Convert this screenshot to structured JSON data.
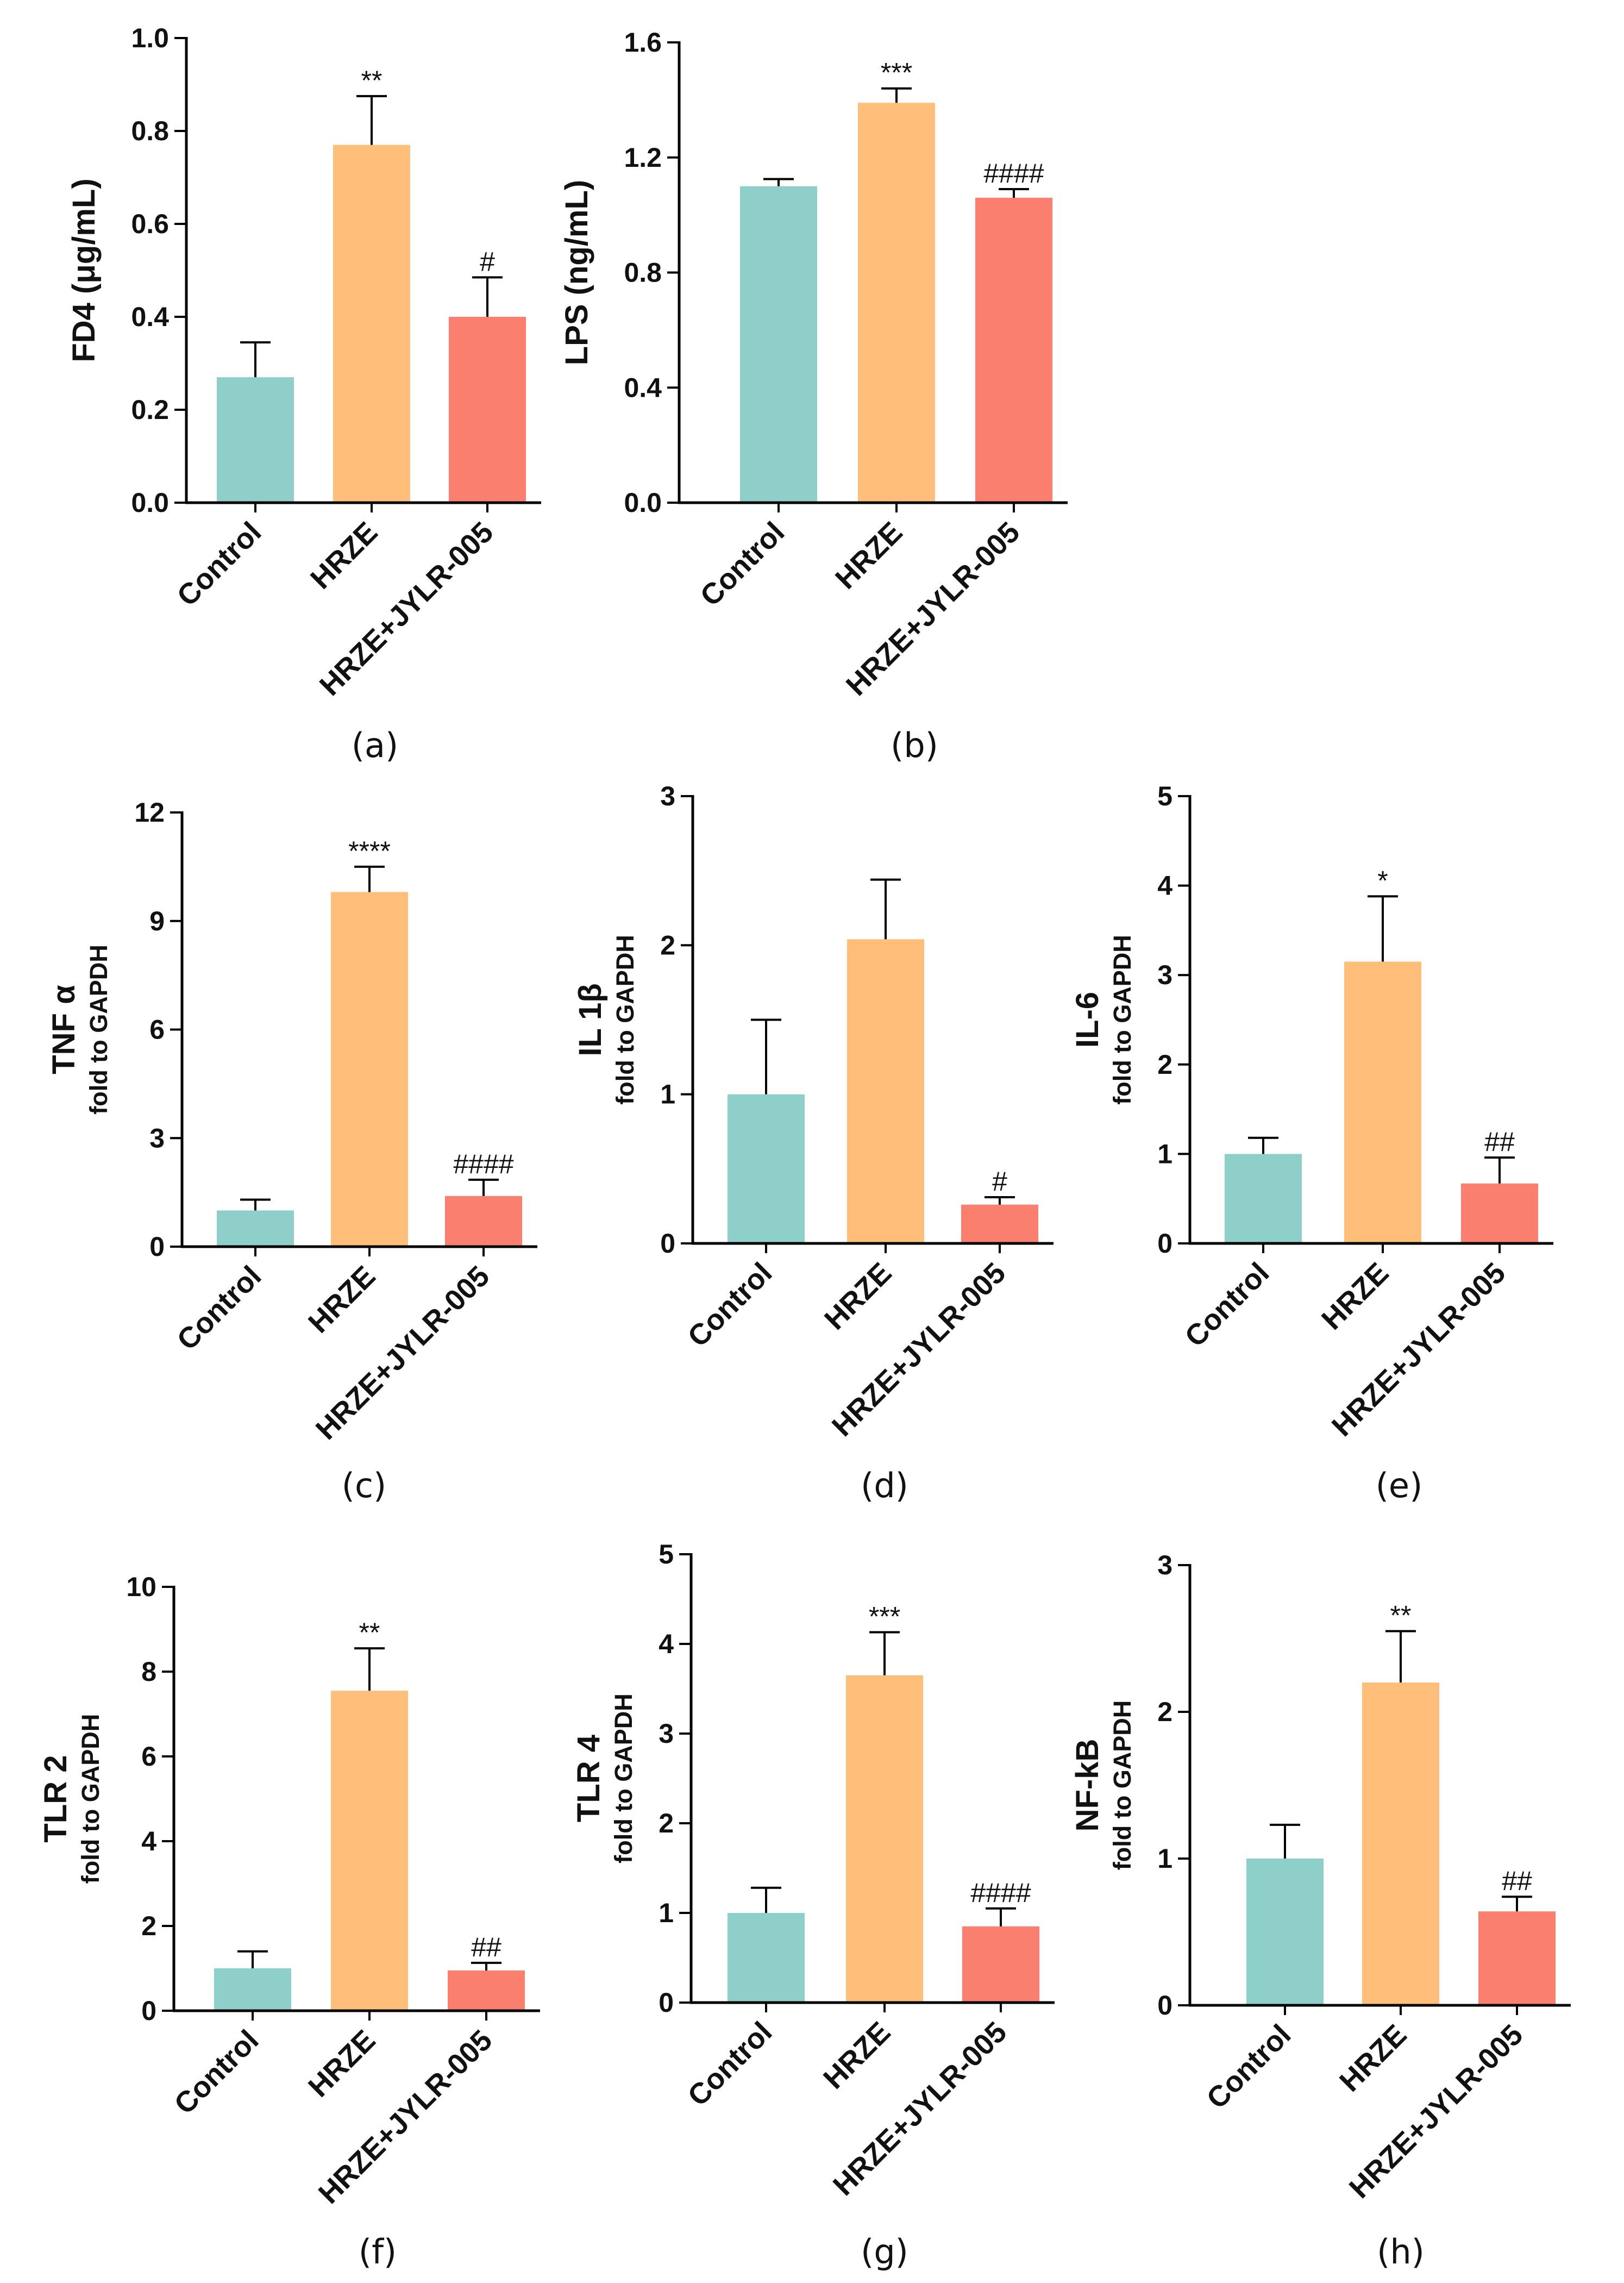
{
  "colors": {
    "Control": "#8ecfc9",
    "HRZE": "#ffbe7a",
    "HRZE+JYLR-005": "#fa7f6f",
    "axis": "#000000"
  },
  "chart_data": [
    {
      "type": "bar",
      "panel": "(a)",
      "ylabel": "FD4 (μg/mL)",
      "ysublabel": "",
      "ylim": [
        0,
        1.0
      ],
      "ticks": [
        "0.0",
        "0.2",
        "0.4",
        "0.6",
        "0.8",
        "1.0"
      ],
      "categories": [
        "Control",
        "HRZE",
        "HRZE+JYLR-005"
      ],
      "values": [
        0.27,
        0.77,
        0.4
      ],
      "errors": [
        0.075,
        0.105,
        0.085
      ],
      "significance": [
        "",
        "**",
        "#"
      ]
    },
    {
      "type": "bar",
      "panel": "(b)",
      "ylabel": "LPS (ng/mL)",
      "ysublabel": "",
      "ylim": [
        0,
        1.6
      ],
      "ticks": [
        "0.0",
        "0.4",
        "0.8",
        "1.2",
        "1.6"
      ],
      "categories": [
        "Control",
        "HRZE",
        "HRZE+JYLR-005"
      ],
      "values": [
        1.1,
        1.39,
        1.06
      ],
      "errors": [
        0.025,
        0.05,
        0.03
      ],
      "significance": [
        "",
        "***",
        "####"
      ]
    },
    {
      "type": "bar",
      "panel": "(c)",
      "ylabel": "TNF α",
      "ysublabel": "fold to GAPDH",
      "ylim": [
        0,
        12
      ],
      "ticks": [
        "0",
        "3",
        "6",
        "9",
        "12"
      ],
      "categories": [
        "Control",
        "HRZE",
        "HRZE+JYLR-005"
      ],
      "values": [
        1.0,
        9.8,
        1.4
      ],
      "errors": [
        0.3,
        0.7,
        0.45
      ],
      "significance": [
        "",
        "****",
        "####"
      ]
    },
    {
      "type": "bar",
      "panel": "(d)",
      "ylabel": "IL 1β",
      "ysublabel": "fold to GAPDH",
      "ylim": [
        0,
        3
      ],
      "ticks": [
        "0",
        "1",
        "2",
        "3"
      ],
      "categories": [
        "Control",
        "HRZE",
        "HRZE+JYLR-005"
      ],
      "values": [
        1.0,
        2.04,
        0.26
      ],
      "errors": [
        0.5,
        0.4,
        0.05
      ],
      "significance": [
        "",
        "",
        "#"
      ]
    },
    {
      "type": "bar",
      "panel": "(e)",
      "ylabel": "IL-6",
      "ysublabel": "fold to GAPDH",
      "ylim": [
        0,
        5
      ],
      "ticks": [
        "0",
        "1",
        "2",
        "3",
        "4",
        "5"
      ],
      "categories": [
        "Control",
        "HRZE",
        "HRZE+JYLR-005"
      ],
      "values": [
        1.0,
        3.15,
        0.67
      ],
      "errors": [
        0.18,
        0.73,
        0.29
      ],
      "significance": [
        "",
        "*",
        "##"
      ]
    },
    {
      "type": "bar",
      "panel": "(f)",
      "ylabel": "TLR 2",
      "ysublabel": "fold to GAPDH",
      "ylim": [
        0,
        10
      ],
      "ticks": [
        "0",
        "2",
        "4",
        "6",
        "8",
        "10"
      ],
      "categories": [
        "Control",
        "HRZE",
        "HRZE+JYLR-005"
      ],
      "values": [
        1.0,
        7.55,
        0.95
      ],
      "errors": [
        0.4,
        1.0,
        0.18
      ],
      "significance": [
        "",
        "**",
        "##"
      ]
    },
    {
      "type": "bar",
      "panel": "(g)",
      "ylabel": "TLR 4",
      "ysublabel": "fold to GAPDH",
      "ylim": [
        0,
        5
      ],
      "ticks": [
        "0",
        "1",
        "2",
        "3",
        "4",
        "5"
      ],
      "categories": [
        "Control",
        "HRZE",
        "HRZE+JYLR-005"
      ],
      "values": [
        1.0,
        3.65,
        0.85
      ],
      "errors": [
        0.28,
        0.48,
        0.2
      ],
      "significance": [
        "",
        "***",
        "####"
      ]
    },
    {
      "type": "bar",
      "panel": "(h)",
      "ylabel": "NF-kB",
      "ysublabel": "fold to GAPDH",
      "ylim": [
        0,
        3
      ],
      "ticks": [
        "0",
        "1",
        "2",
        "3"
      ],
      "categories": [
        "Control",
        "HRZE",
        "HRZE+JYLR-005"
      ],
      "values": [
        1.0,
        2.2,
        0.64
      ],
      "errors": [
        0.23,
        0.35,
        0.1
      ],
      "significance": [
        "",
        "**",
        "##"
      ]
    }
  ]
}
